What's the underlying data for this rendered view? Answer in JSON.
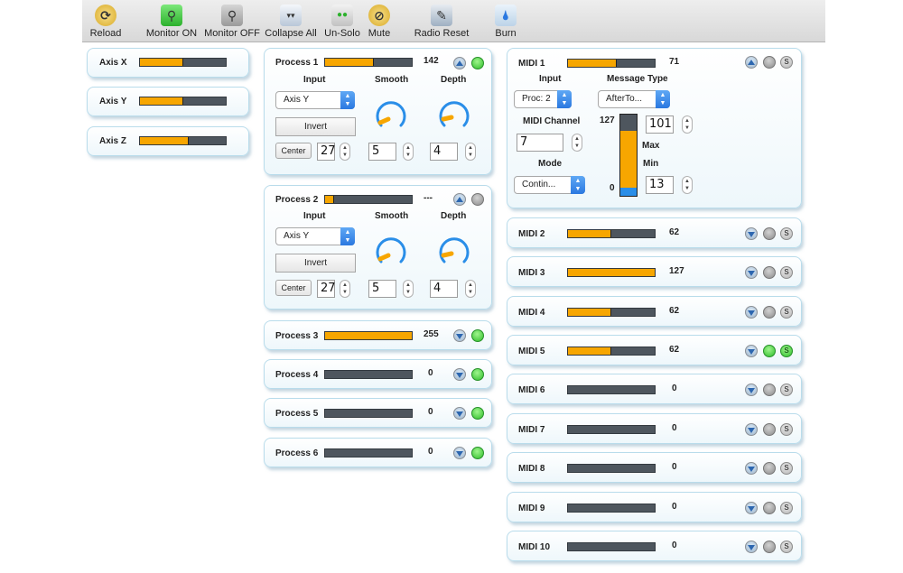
{
  "toolbar": {
    "buttons": [
      {
        "label": "Reload",
        "icon": "reload-icon"
      },
      {
        "label": "Monitor ON",
        "icon": "magnifier-on-icon"
      },
      {
        "label": "Monitor OFF",
        "icon": "magnifier-off-icon"
      },
      {
        "label": "Collapse All",
        "icon": "collapse-icon"
      },
      {
        "label": "Un-Solo",
        "icon": "unsolo-icon"
      },
      {
        "label": "Mute",
        "icon": "mute-icon"
      },
      {
        "label": "Radio Reset",
        "icon": "pencil-icon"
      },
      {
        "label": "Burn",
        "icon": "burn-icon"
      }
    ]
  },
  "axes": [
    {
      "label": "Axis X",
      "level": 0.5
    },
    {
      "label": "Axis Y",
      "level": 0.5
    },
    {
      "label": "Axis Z",
      "level": 0.57
    }
  ],
  "processes_expanded": [
    {
      "title": "Process 1",
      "value": "142",
      "level": 0.56,
      "led": "green",
      "input_label": "Input",
      "smooth_label": "Smooth",
      "depth_label": "Depth",
      "input_value": "Axis Y",
      "invert_label": "Invert",
      "center_label": "Center",
      "center_value": "27",
      "smooth_value": "5",
      "depth_value": "4"
    },
    {
      "title": "Process 2",
      "value": "---",
      "level": 0.1,
      "led": "gray",
      "input_label": "Input",
      "smooth_label": "Smooth",
      "depth_label": "Depth",
      "input_value": "Axis Y",
      "invert_label": "Invert",
      "center_label": "Center",
      "center_value": "27",
      "smooth_value": "5",
      "depth_value": "4"
    }
  ],
  "processes_collapsed": [
    {
      "title": "Process 3",
      "value": "255",
      "level": 1.0
    },
    {
      "title": "Process 4",
      "value": "0",
      "level": 0
    },
    {
      "title": "Process 5",
      "value": "0",
      "level": 0
    },
    {
      "title": "Process 6",
      "value": "0",
      "level": 0
    }
  ],
  "midi1": {
    "title": "MIDI 1",
    "value": "71",
    "level": 0.56,
    "input_label": "Input",
    "input_value": "Proc: 2",
    "message_type_label": "Message Type",
    "message_type_value": "AfterTo...",
    "channel_label": "MIDI Channel",
    "channel_value": "7",
    "mode_label": "Mode",
    "mode_value": "Contin...",
    "max_label": "Max",
    "max_value": "101",
    "min_label": "Min",
    "min_value": "13",
    "range_top": "127",
    "range_bottom": "0",
    "slider_min": 0.1,
    "slider_max": 0.8
  },
  "midis": [
    {
      "title": "MIDI 2",
      "value": "62",
      "level": 0.5,
      "led": "gray",
      "solo": false
    },
    {
      "title": "MIDI 3",
      "value": "127",
      "level": 1.0,
      "led": "gray",
      "solo": false
    },
    {
      "title": "MIDI 4",
      "value": "62",
      "level": 0.5,
      "led": "gray",
      "solo": false
    },
    {
      "title": "MIDI 5",
      "value": "62",
      "level": 0.5,
      "led": "green",
      "solo": true
    },
    {
      "title": "MIDI 6",
      "value": "0",
      "level": 0,
      "led": "gray",
      "solo": false
    },
    {
      "title": "MIDI 7",
      "value": "0",
      "level": 0,
      "led": "gray",
      "solo": false
    },
    {
      "title": "MIDI 8",
      "value": "0",
      "level": 0,
      "led": "gray",
      "solo": false
    },
    {
      "title": "MIDI 9",
      "value": "0",
      "level": 0,
      "led": "gray",
      "solo": false
    },
    {
      "title": "MIDI 10",
      "value": "0",
      "level": 0,
      "led": "gray",
      "solo": false
    }
  ],
  "solo_letter": "S",
  "colors": {
    "bar_fill": "#f7a600",
    "bar_track": "#4e565e",
    "knob_arc": "#2a8ee8",
    "knob_pointer": "#f7a600"
  }
}
